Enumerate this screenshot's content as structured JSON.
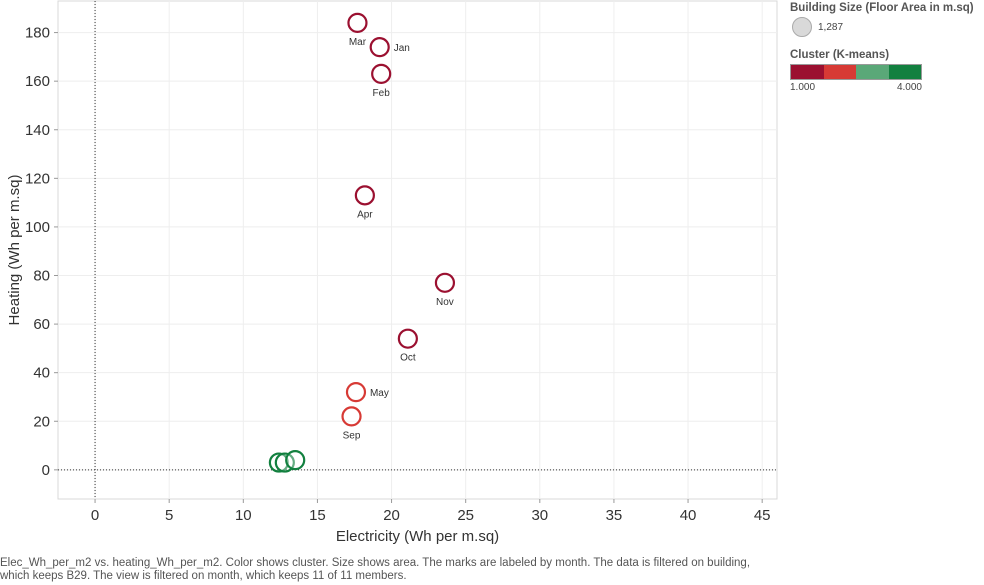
{
  "chart_data": {
    "type": "scatter",
    "xlabel": "Electricity (Wh per m.sq)",
    "ylabel": "Heating (Wh per m.sq)",
    "xlim": [
      -2.5,
      46
    ],
    "ylim": [
      -12,
      193
    ],
    "x_ticks": [
      0,
      5,
      10,
      15,
      20,
      25,
      30,
      35,
      40,
      45
    ],
    "y_ticks": [
      0,
      20,
      40,
      60,
      80,
      100,
      120,
      140,
      160,
      180
    ],
    "grid": true,
    "points": [
      {
        "label": "Mar",
        "x": 17.7,
        "y": 184,
        "cluster": 1
      },
      {
        "label": "Jan",
        "x": 19.2,
        "y": 174,
        "cluster": 1
      },
      {
        "label": "Feb",
        "x": 19.3,
        "y": 163,
        "cluster": 1
      },
      {
        "label": "Apr",
        "x": 18.2,
        "y": 113,
        "cluster": 1
      },
      {
        "label": "Nov",
        "x": 23.6,
        "y": 77,
        "cluster": 1
      },
      {
        "label": "Oct",
        "x": 21.1,
        "y": 54,
        "cluster": 1
      },
      {
        "label": "May",
        "x": 17.6,
        "y": 32,
        "cluster": 2
      },
      {
        "label": "Sep",
        "x": 17.3,
        "y": 22,
        "cluster": 2
      },
      {
        "label": "",
        "x": 12.4,
        "y": 3,
        "cluster": 4
      },
      {
        "label": "",
        "x": 12.8,
        "y": 3,
        "cluster": 4
      },
      {
        "label": "",
        "x": 13.5,
        "y": 4,
        "cluster": 4
      }
    ]
  },
  "colors": {
    "cluster_1": "#9b1030",
    "cluster_2": "#d73a35",
    "cluster_3": "#5aa878",
    "cluster_4": "#12803f"
  },
  "legend": {
    "size_title": "Building Size (Floor Area in m.sq)",
    "size_value": "1,287",
    "cluster_title": "Cluster (K-means)",
    "cluster_min": "1.000",
    "cluster_max": "4.000"
  },
  "caption": "Elec_Wh_per_m2 vs. heating_Wh_per_m2.  Color shows cluster.  Size shows area.  The marks are labeled by month. The data is filtered on building, which keeps B29. The view is filtered on month, which keeps 11 of 11 members."
}
